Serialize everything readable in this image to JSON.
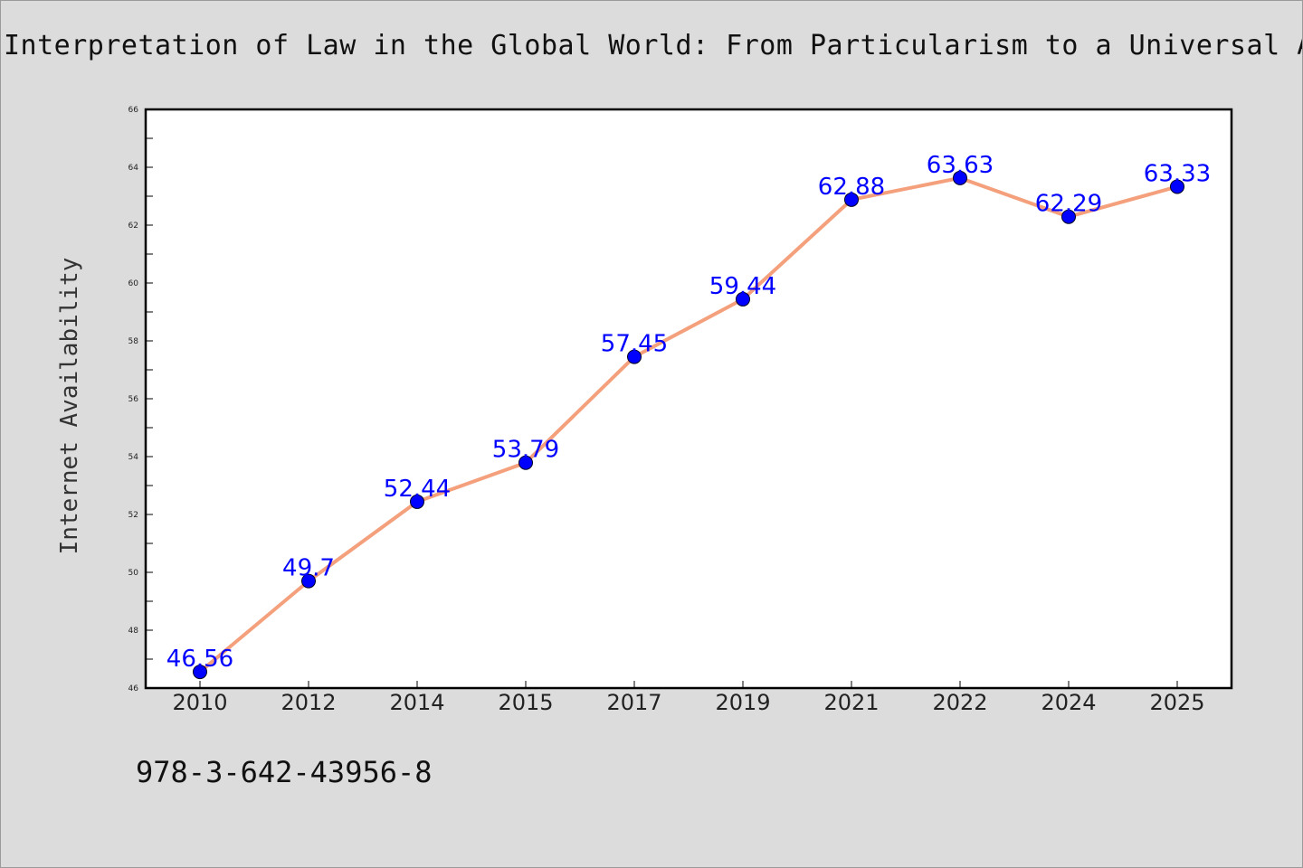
{
  "chart_data": {
    "type": "line",
    "title": "Interpretation of Law in the Global World: From Particularism to a Universal App",
    "xlabel": "",
    "ylabel": "Internet Availability",
    "categories": [
      "2010",
      "2012",
      "2014",
      "2015",
      "2017",
      "2019",
      "2021",
      "2022",
      "2024",
      "2025"
    ],
    "series": [
      {
        "values": [
          46.56,
          49.7,
          52.44,
          53.79,
          57.45,
          59.44,
          62.88,
          63.63,
          62.29,
          63.33
        ]
      }
    ],
    "data_labels": [
      "46.56",
      "49.7",
      "52.44",
      "53.79",
      "57.45",
      "59.44",
      "62.88",
      "63.63",
      "62.29",
      "63.33"
    ],
    "ylim": [
      46,
      66
    ],
    "yticks": [
      "46",
      "48",
      "50",
      "52",
      "54",
      "56",
      "58",
      "60",
      "62",
      "64",
      "66"
    ],
    "grid": false,
    "legend": "none",
    "colors": {
      "line": "#f4a07c",
      "marker": "#0000ff",
      "label": "#0000ff",
      "background": "#dcdcdc",
      "plot_area": "#ffffff"
    }
  },
  "footer": {
    "isbn": "978-3-642-43956-8"
  }
}
